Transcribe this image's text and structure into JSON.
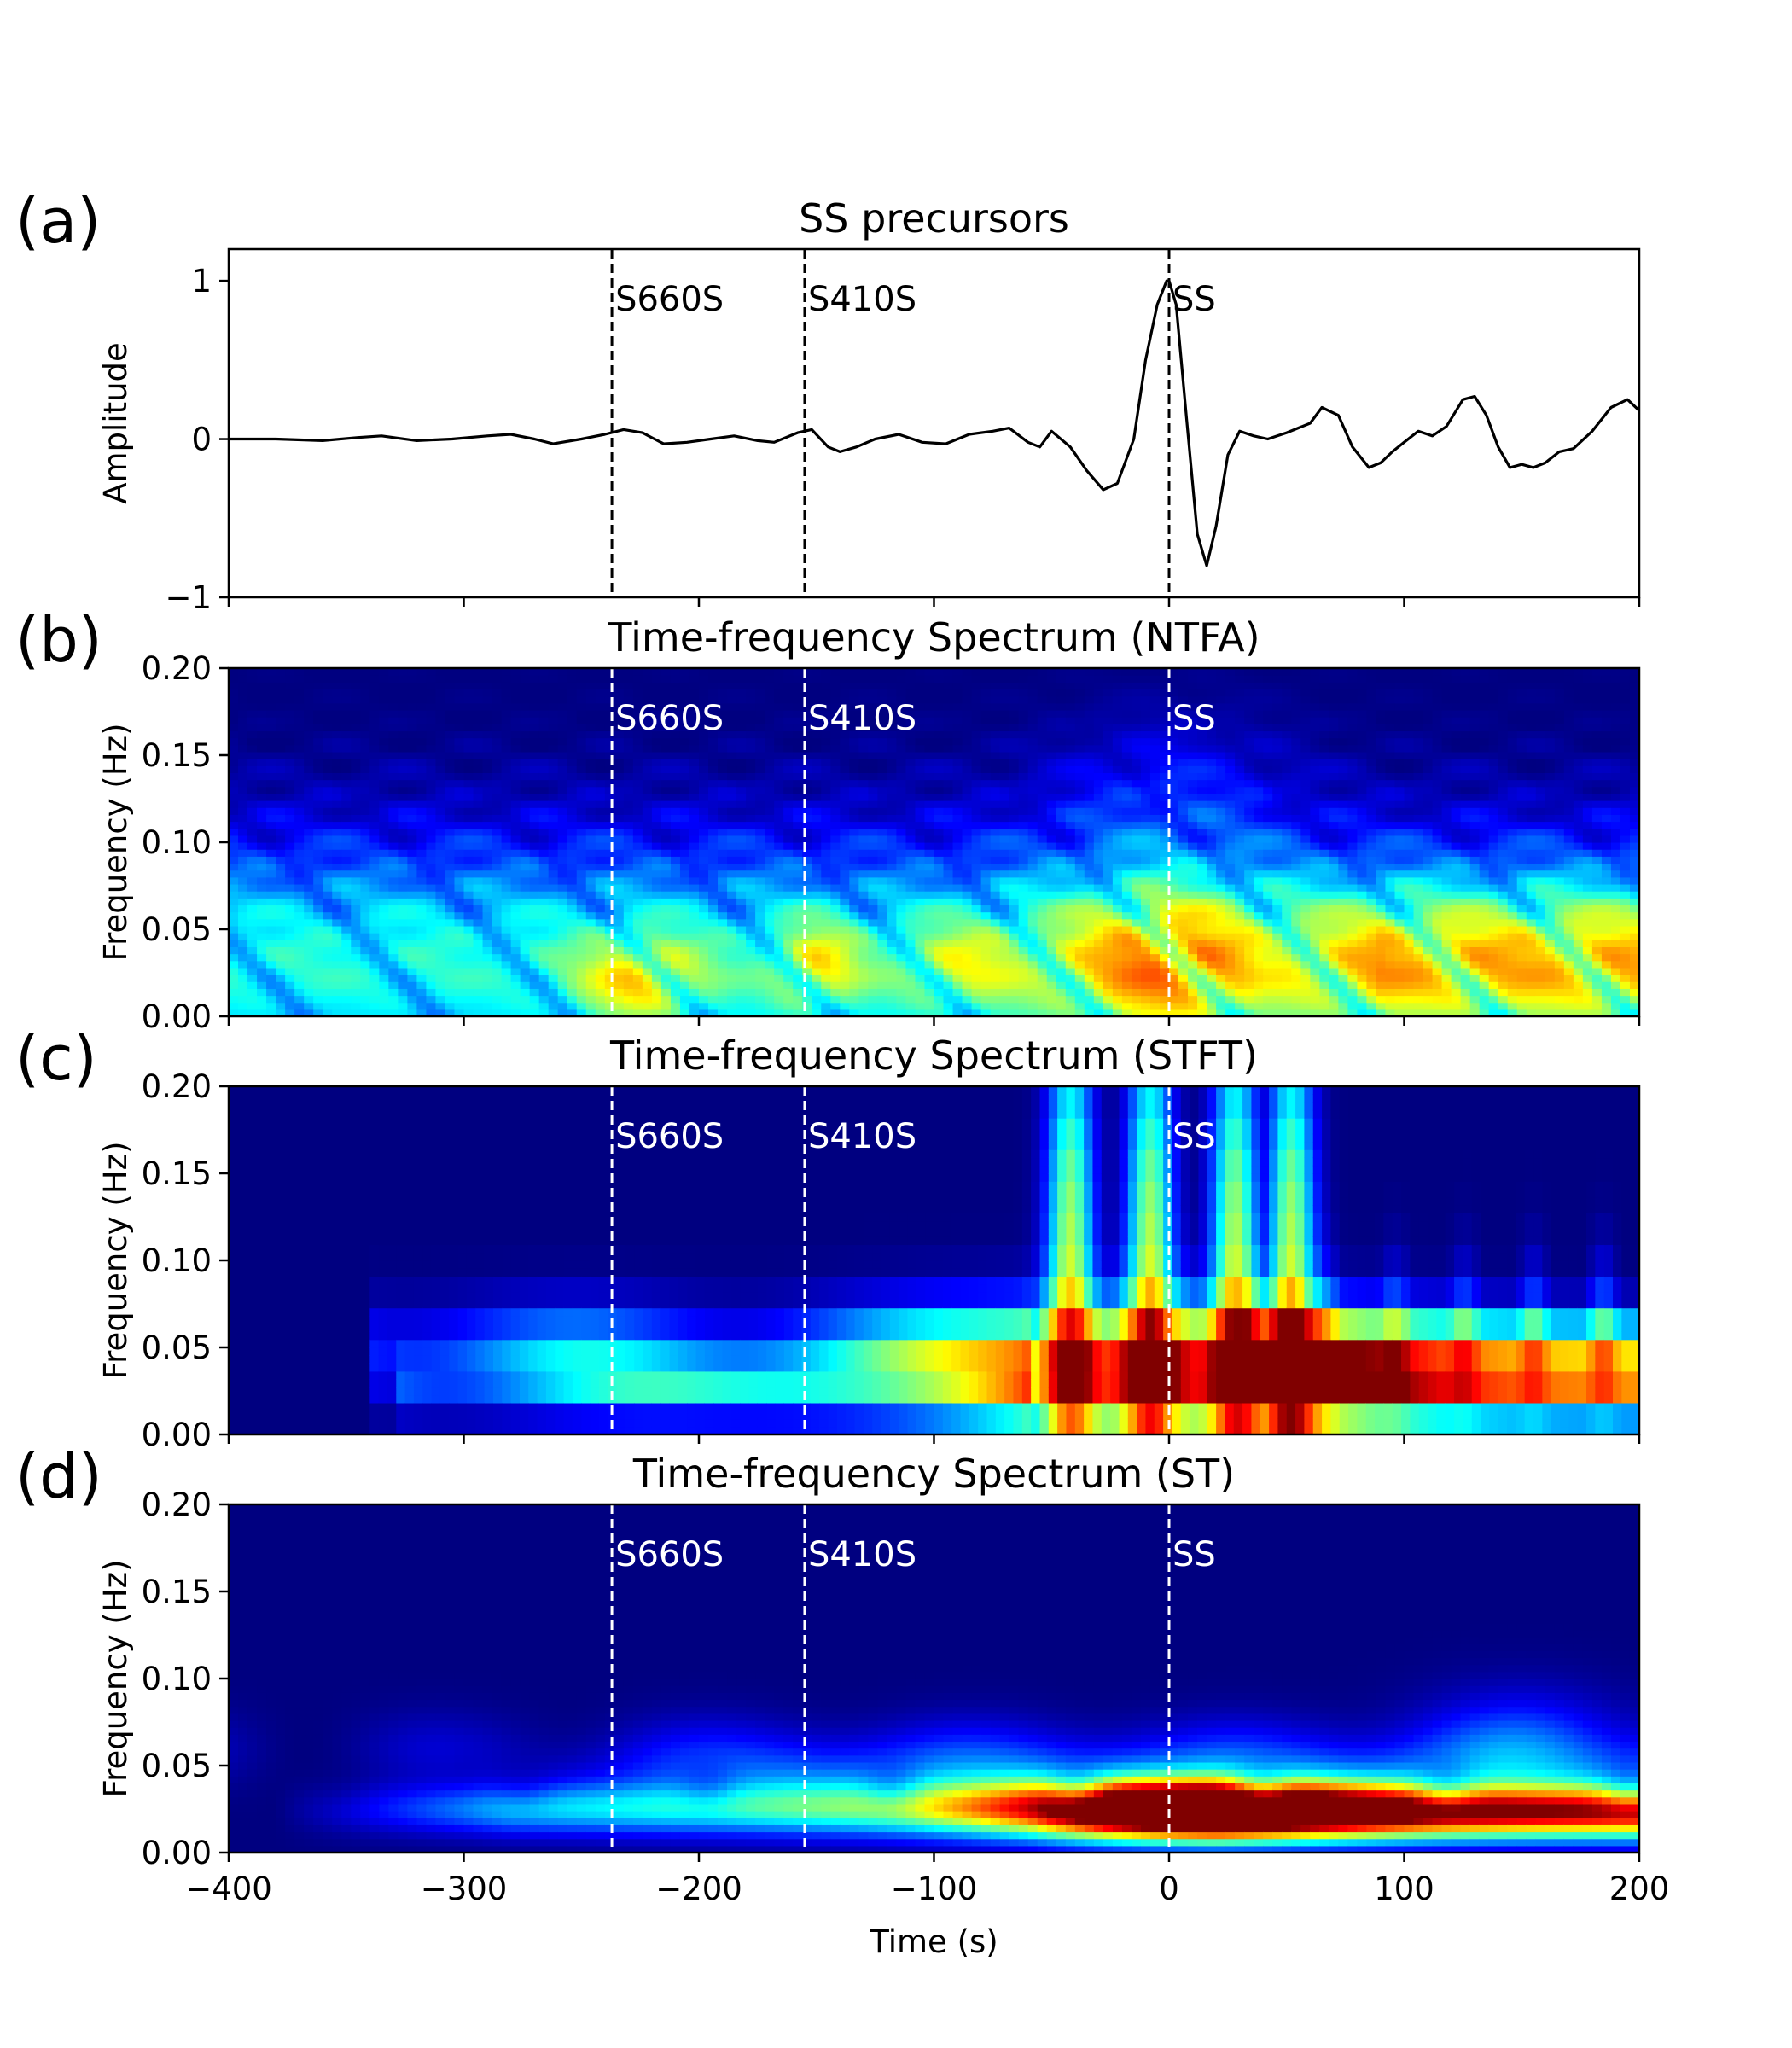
{
  "chart_data": [
    {
      "id": "a",
      "type": "line",
      "panel_label": "(a)",
      "title": "SS precursors",
      "xlabel": "",
      "ylabel": "Amplitude",
      "xlim": [
        -400,
        200
      ],
      "ylim": [
        -1,
        1.2
      ],
      "yticks": [
        -1,
        0,
        1
      ],
      "ytick_labels": [
        "−1",
        "0",
        "1"
      ],
      "phase_markers": [
        {
          "label": "S660S",
          "x": -237
        },
        {
          "label": "S410S",
          "x": -155
        },
        {
          "label": "SS",
          "x": 0
        }
      ],
      "marker_color": "#000000",
      "line_color": "#000000",
      "series": [
        {
          "x": [
            -400,
            -380,
            -360,
            -345,
            -335,
            -320,
            -305,
            -290,
            -280,
            -270,
            -262,
            -250,
            -240,
            -232,
            -224,
            -215,
            -205,
            -195,
            -185,
            -175,
            -168,
            -158,
            -152,
            -145,
            -140,
            -133,
            -125,
            -115,
            -105,
            -95,
            -85,
            -75,
            -68,
            -60,
            -55,
            -50,
            -42,
            -35,
            -28,
            -22,
            -15,
            -10,
            -5,
            -1,
            0,
            3,
            7,
            12,
            16,
            20,
            25,
            30,
            36,
            42,
            50,
            60,
            65,
            72,
            78,
            85,
            90,
            95,
            100,
            106,
            112,
            118,
            125,
            130,
            135,
            140,
            145,
            150,
            155,
            160,
            166,
            172,
            180,
            188,
            195,
            200
          ],
          "y": [
            0,
            0,
            -0.01,
            0.01,
            0.02,
            -0.01,
            0,
            0.02,
            0.03,
            0,
            -0.03,
            0,
            0.03,
            0.06,
            0.04,
            -0.03,
            -0.02,
            0,
            0.02,
            -0.01,
            -0.02,
            0.04,
            0.06,
            -0.05,
            -0.08,
            -0.05,
            0,
            0.03,
            -0.02,
            -0.03,
            0.03,
            0.05,
            0.07,
            -0.02,
            -0.05,
            0.05,
            -0.05,
            -0.2,
            -0.32,
            -0.28,
            0,
            0.5,
            0.85,
            1.0,
            1.0,
            0.85,
            0.2,
            -0.6,
            -0.8,
            -0.55,
            -0.1,
            0.05,
            0.02,
            0,
            0.04,
            0.1,
            0.2,
            0.15,
            -0.05,
            -0.18,
            -0.15,
            -0.08,
            -0.02,
            0.05,
            0.02,
            0.08,
            0.25,
            0.27,
            0.15,
            -0.05,
            -0.18,
            -0.16,
            -0.18,
            -0.15,
            -0.08,
            -0.06,
            0.05,
            0.2,
            0.25,
            0.18
          ]
        }
      ]
    },
    {
      "id": "b",
      "type": "heatmap",
      "panel_label": "(b)",
      "title": "Time-frequency Spectrum (NTFA)",
      "xlabel": "",
      "ylabel": "Frequency (Hz)",
      "xlim": [
        -400,
        200
      ],
      "ylim": [
        0,
        0.2
      ],
      "yticks": [
        0,
        0.05,
        0.1,
        0.15,
        0.2
      ],
      "ytick_labels": [
        "0.00",
        "0.05",
        "0.10",
        "0.15",
        "0.20"
      ],
      "colormap": "jet",
      "marker_color": "#ffffff",
      "phase_markers": [
        {
          "label": "S660S",
          "x": -237
        },
        {
          "label": "S410S",
          "x": -155
        },
        {
          "label": "SS",
          "x": 0
        }
      ]
    },
    {
      "id": "c",
      "type": "heatmap",
      "panel_label": "(c)",
      "title": "Time-frequency Spectrum (STFT)",
      "xlabel": "",
      "ylabel": "Frequency (Hz)",
      "xlim": [
        -400,
        200
      ],
      "ylim": [
        0,
        0.2
      ],
      "yticks": [
        0,
        0.05,
        0.1,
        0.15,
        0.2
      ],
      "ytick_labels": [
        "0.00",
        "0.05",
        "0.10",
        "0.15",
        "0.20"
      ],
      "colormap": "jet",
      "marker_color": "#ffffff",
      "phase_markers": [
        {
          "label": "S660S",
          "x": -237
        },
        {
          "label": "S410S",
          "x": -155
        },
        {
          "label": "SS",
          "x": 0
        }
      ]
    },
    {
      "id": "d",
      "type": "heatmap",
      "panel_label": "(d)",
      "title": "Time-frequency Spectrum (ST)",
      "xlabel": "Time (s)",
      "ylabel": "Frequency (Hz)",
      "xlim": [
        -400,
        200
      ],
      "ylim": [
        0,
        0.2
      ],
      "xticks": [
        -400,
        -300,
        -200,
        -100,
        0,
        100,
        200
      ],
      "xtick_labels": [
        "−400",
        "−300",
        "−200",
        "−100",
        "0",
        "100",
        "200"
      ],
      "yticks": [
        0,
        0.05,
        0.1,
        0.15,
        0.2
      ],
      "ytick_labels": [
        "0.00",
        "0.05",
        "0.10",
        "0.15",
        "0.20"
      ],
      "colormap": "jet",
      "marker_color": "#ffffff",
      "phase_markers": [
        {
          "label": "S660S",
          "x": -237
        },
        {
          "label": "S410S",
          "x": -155
        },
        {
          "label": "SS",
          "x": 0
        }
      ]
    }
  ]
}
